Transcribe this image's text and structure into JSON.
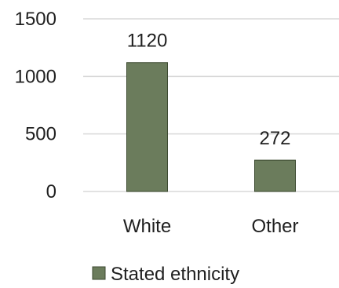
{
  "chart_data": {
    "type": "bar",
    "categories": [
      "White",
      "Other"
    ],
    "series": [
      {
        "name": "Stated ethnicity",
        "values": [
          1120,
          272
        ]
      }
    ],
    "ylim": [
      0,
      1500
    ],
    "yticks": [
      0,
      500,
      1000,
      1500
    ],
    "grid": true,
    "legend_position": "bottom",
    "colors": {
      "bar_fill": "#6b7c5c",
      "bar_stroke": "#3c4a30",
      "grid": "#d9d9d9",
      "text": "#1f1f1f"
    }
  }
}
